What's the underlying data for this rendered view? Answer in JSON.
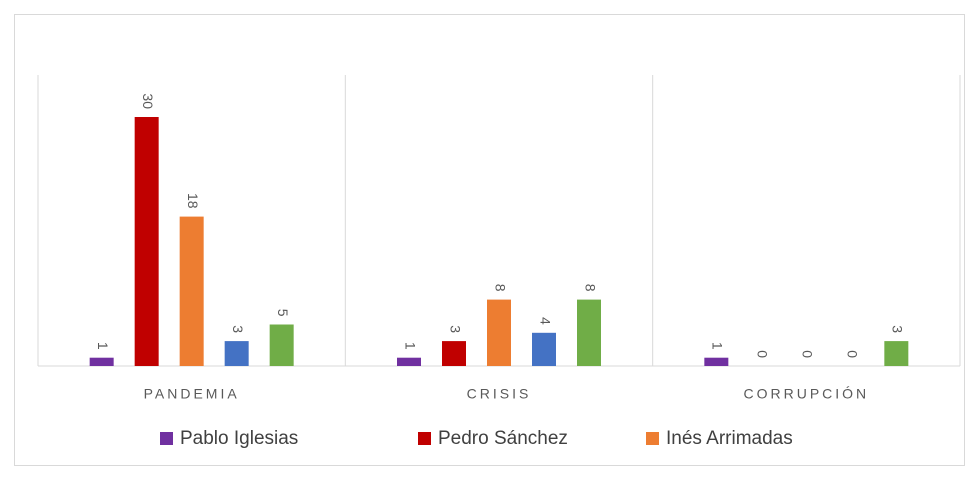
{
  "chart_data": {
    "type": "bar",
    "categories": [
      "PANDEMIA",
      "CRISIS",
      "CORRUPCIÓN"
    ],
    "series": [
      {
        "name": "Pablo Iglesias",
        "color": "#7030a0",
        "values": [
          1,
          1,
          1
        ]
      },
      {
        "name": "Pedro Sánchez",
        "color": "#c00000",
        "values": [
          30,
          3,
          0
        ]
      },
      {
        "name": "Inés Arrimadas",
        "color": "#ed7d31",
        "values": [
          18,
          8,
          0
        ]
      },
      {
        "color": "#4472c4",
        "values": [
          3,
          4,
          0
        ]
      },
      {
        "color": "#70ad47",
        "values": [
          5,
          8,
          3
        ]
      }
    ],
    "legend": "bottom"
  }
}
